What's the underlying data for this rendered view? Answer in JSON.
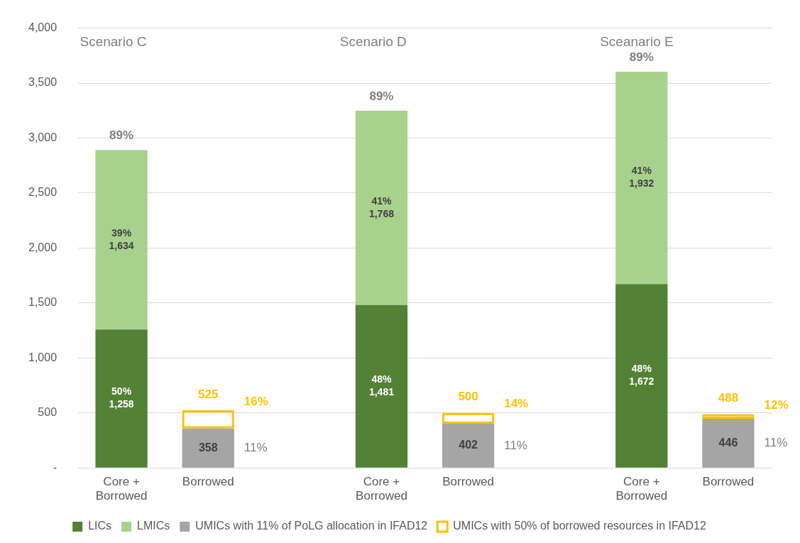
{
  "chart_data": {
    "type": "bar",
    "stacked": true,
    "categories": [
      "Core + Borrowed",
      "Borrowed",
      null,
      "Core + Borrowed",
      "Borrowed",
      null,
      "Core + Borrowed",
      "Borrowed"
    ],
    "series": [
      {
        "name": "LICs",
        "color": "#538135",
        "values": [
          1258,
          null,
          null,
          1481,
          null,
          null,
          1672,
          null
        ],
        "value_labels": [
          "50%\n1,258",
          null,
          null,
          "48%\n1,481",
          null,
          null,
          "48%\n1,672",
          null
        ]
      },
      {
        "name": "LMICs",
        "color": "#a9d18e",
        "values": [
          1634,
          null,
          null,
          1768,
          null,
          null,
          1932,
          null
        ],
        "value_labels": [
          "39%\n1,634",
          null,
          null,
          "41%\n1,768",
          null,
          null,
          "41%\n1,932",
          null
        ]
      },
      {
        "name": "UMICs with 11% of PoLG allocation in IFAD12",
        "color": "#a5a5a5",
        "values": [
          null,
          358,
          null,
          null,
          402,
          null,
          null,
          446
        ],
        "value_labels": [
          null,
          "358",
          null,
          null,
          "402",
          null,
          null,
          "446"
        ]
      },
      {
        "name": "UMICs with 50% of borrowed resources in IFAD12",
        "color": "#ffc000",
        "line_style": "dashed",
        "values": [
          null,
          167,
          null,
          null,
          98,
          null,
          null,
          42
        ]
      }
    ],
    "annotations": [
      "Scenario C",
      "89%",
      "525",
      "16%",
      "11%",
      "Scenario D",
      "89%",
      "500",
      "14%",
      "11%",
      "Sceanario E",
      "89%",
      "488",
      "12%",
      "11%"
    ],
    "ylim": [
      0,
      4000
    ],
    "yticks": [
      {
        "value": 0,
        "label": "-"
      },
      500,
      {
        "value": 1000,
        "label": "1,000"
      },
      {
        "value": 1500,
        "label": "1,500"
      },
      {
        "value": 2000,
        "label": "2,000"
      },
      {
        "value": 2500,
        "label": "2,500"
      },
      {
        "value": 3000,
        "label": "3,000"
      },
      {
        "value": 3500,
        "label": "3,500"
      },
      {
        "value": 4000,
        "label": "4,000"
      }
    ],
    "grid": "y",
    "legend": "bottom"
  }
}
